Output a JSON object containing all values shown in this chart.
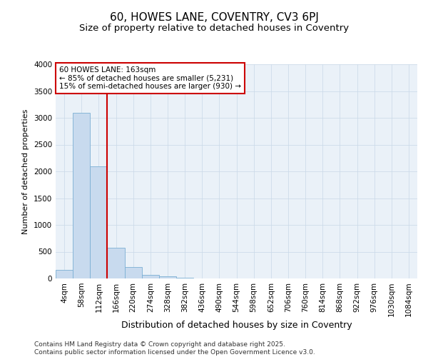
{
  "title": "60, HOWES LANE, COVENTRY, CV3 6PJ",
  "subtitle": "Size of property relative to detached houses in Coventry",
  "xlabel": "Distribution of detached houses by size in Coventry",
  "ylabel": "Number of detached properties",
  "categories": [
    "4sqm",
    "58sqm",
    "112sqm",
    "166sqm",
    "220sqm",
    "274sqm",
    "328sqm",
    "382sqm",
    "436sqm",
    "490sqm",
    "544sqm",
    "598sqm",
    "652sqm",
    "706sqm",
    "760sqm",
    "814sqm",
    "868sqm",
    "922sqm",
    "976sqm",
    "1030sqm",
    "1084sqm"
  ],
  "bar_heights": [
    155,
    3100,
    2090,
    570,
    210,
    65,
    35,
    20,
    0,
    0,
    0,
    0,
    0,
    0,
    0,
    0,
    0,
    0,
    0,
    0,
    0
  ],
  "bar_color": "#c8daee",
  "bar_edge_color": "#7bafd4",
  "grid_color": "#c8d8e8",
  "plot_bg_color": "#eaf1f8",
  "fig_bg_color": "#ffffff",
  "vline_x": 2.5,
  "vline_color": "#cc0000",
  "annotation_text": "60 HOWES LANE: 163sqm\n← 85% of detached houses are smaller (5,231)\n15% of semi-detached houses are larger (930) →",
  "annotation_box_facecolor": "#ffffff",
  "annotation_box_edgecolor": "#cc0000",
  "ylim": [
    0,
    4000
  ],
  "yticks": [
    0,
    500,
    1000,
    1500,
    2000,
    2500,
    3000,
    3500,
    4000
  ],
  "footer_text": "Contains HM Land Registry data © Crown copyright and database right 2025.\nContains public sector information licensed under the Open Government Licence v3.0.",
  "title_fontsize": 11,
  "subtitle_fontsize": 9.5,
  "ylabel_fontsize": 8,
  "xlabel_fontsize": 9,
  "tick_fontsize": 7.5,
  "annotation_fontsize": 7.5,
  "footer_fontsize": 6.5
}
